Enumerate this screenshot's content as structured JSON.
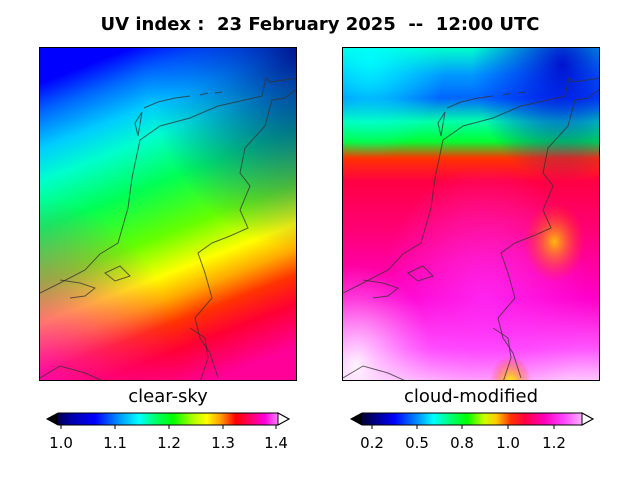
{
  "title": "UV index :  23 February 2025  --  12:00 UTC",
  "panels": [
    {
      "id": "clear-sky",
      "label": "clear-sky",
      "colorbar": {
        "min": 1.0,
        "max": 1.4,
        "ticks": [
          "1.0",
          "1.1",
          "1.2",
          "1.3",
          "1.4"
        ],
        "extend": "both"
      }
    },
    {
      "id": "cloud-modified",
      "label": "cloud-modified",
      "colorbar": {
        "min": 0.1,
        "max": 1.35,
        "ticks": [
          "0.2",
          "0.5",
          "0.8",
          "1.0",
          "1.2"
        ],
        "extend": "both"
      }
    }
  ],
  "colors": {
    "scale": [
      "#000000",
      "#0000cc",
      "#0000ff",
      "#0099ff",
      "#00ffff",
      "#00ff99",
      "#00ff00",
      "#66ff00",
      "#ffff00",
      "#ffaa00",
      "#ff3300",
      "#ff0055",
      "#ff00cc",
      "#ff33ff",
      "#ff99ff",
      "#ffffff"
    ],
    "coastline": "#333333"
  }
}
